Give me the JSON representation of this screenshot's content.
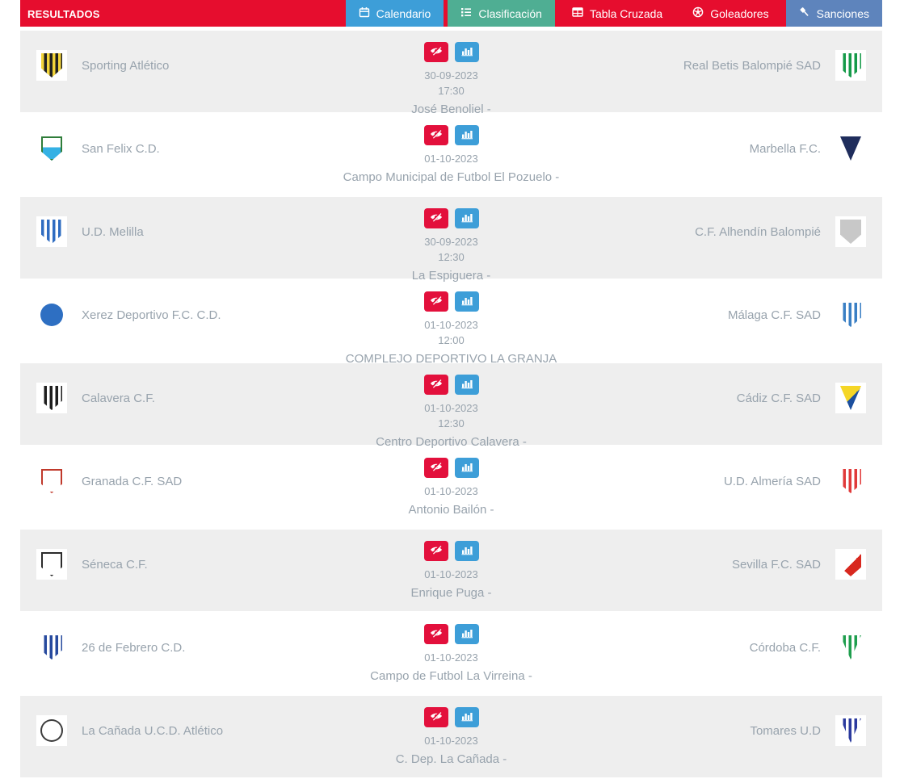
{
  "header": {
    "title": "RESULTADOS"
  },
  "tabs": [
    {
      "label": "Calendario",
      "icon": "calendar-icon",
      "color": "#3d9ed8"
    },
    {
      "label": "Clasificación",
      "icon": "ordered-list-icon",
      "color": "#4fae93"
    },
    {
      "label": "Tabla Cruzada",
      "icon": "table-icon",
      "color": "#e60d2e"
    },
    {
      "label": "Goleadores",
      "icon": "soccer-ball-icon",
      "color": "#e60d2e"
    },
    {
      "label": "Sanciones",
      "icon": "gavel-icon",
      "color": "#5e84bc"
    }
  ],
  "actions": {
    "hide_icon": "eye-slash-icon",
    "stats_icon": "bar-chart-icon"
  },
  "colors": {
    "primary_red": "#e60d2e",
    "tab_blue": "#3d9ed8",
    "tab_green": "#4fae93",
    "tab_steel": "#5e84bc",
    "button_red": "#e3103c",
    "button_blue": "#3d9ed8",
    "row_alt": "#eeeeee",
    "text_muted": "#98a3ad"
  },
  "matches": [
    {
      "home": {
        "name": "Sporting Atlético",
        "logo": {
          "shape": "shield",
          "pattern": "stripes",
          "colors": [
            "#f2d43a",
            "#222222"
          ]
        }
      },
      "away": {
        "name": "Real Betis Balompié SAD",
        "logo": {
          "shape": "shield",
          "pattern": "stripes",
          "colors": [
            "#ffffff",
            "#159a49"
          ]
        }
      },
      "date": "30-09-2023",
      "time": "17:30",
      "venue": "José Benoliel -"
    },
    {
      "home": {
        "name": "San Felix C.D.",
        "logo": {
          "shape": "shield",
          "pattern": "split-h",
          "colors": [
            "#ffffff",
            "#35b1e4"
          ],
          "border": "#2f7d3a"
        }
      },
      "away": {
        "name": "Marbella F.C.",
        "logo": {
          "shape": "pennant",
          "pattern": "solid",
          "colors": [
            "#1f2d5c"
          ]
        }
      },
      "date": "01-10-2023",
      "time": null,
      "venue": "Campo Municipal de Futbol El Pozuelo -"
    },
    {
      "home": {
        "name": "U.D. Melilla",
        "logo": {
          "shape": "shield",
          "pattern": "stripes",
          "colors": [
            "#2f6cc1",
            "#ffffff"
          ]
        }
      },
      "away": {
        "name": "C.F. Alhendín Balompié",
        "logo": {
          "shape": "shield",
          "pattern": "solid",
          "colors": [
            "#c8c8c8"
          ]
        }
      },
      "date": "30-09-2023",
      "time": "12:30",
      "venue": "La Espiguera -"
    },
    {
      "home": {
        "name": "Xerez Deportivo F.C. C.D.",
        "logo": {
          "shape": "circle",
          "pattern": "solid",
          "colors": [
            "#2e6fc2"
          ]
        }
      },
      "away": {
        "name": "Málaga C.F. SAD",
        "logo": {
          "shape": "shield",
          "pattern": "stripes",
          "colors": [
            "#ffffff",
            "#3a7fc4"
          ]
        }
      },
      "date": "01-10-2023",
      "time": "12:00",
      "venue": "COMPLEJO DEPORTIVO LA GRANJA"
    },
    {
      "home": {
        "name": "Calavera C.F.",
        "logo": {
          "shape": "shield",
          "pattern": "stripes",
          "colors": [
            "#ffffff",
            "#1d1d1d"
          ]
        }
      },
      "away": {
        "name": "Cádiz C.F. SAD",
        "logo": {
          "shape": "pennant",
          "pattern": "split",
          "colors": [
            "#f5d626",
            "#1c4f9e"
          ]
        }
      },
      "date": "01-10-2023",
      "time": "12:30",
      "venue": "Centro Deportivo Calavera -"
    },
    {
      "home": {
        "name": "Granada C.F. SAD",
        "logo": {
          "shape": "shield",
          "pattern": "solid",
          "colors": [
            "#ffffff"
          ],
          "border": "#c0392b"
        }
      },
      "away": {
        "name": "U.D. Almería SAD",
        "logo": {
          "shape": "shield",
          "pattern": "stripes",
          "colors": [
            "#ffffff",
            "#e03a3a"
          ]
        }
      },
      "date": "01-10-2023",
      "time": null,
      "venue": "Antonio Bailón -"
    },
    {
      "home": {
        "name": "Séneca C.F.",
        "logo": {
          "shape": "shield",
          "pattern": "solid",
          "colors": [
            "#ffffff"
          ],
          "border": "#2b2b2b"
        }
      },
      "away": {
        "name": "Sevilla F.C. SAD",
        "logo": {
          "shape": "shield",
          "pattern": "split",
          "colors": [
            "#ffffff",
            "#d8281f"
          ]
        }
      },
      "date": "01-10-2023",
      "time": null,
      "venue": "Enrique Puga -"
    },
    {
      "home": {
        "name": "26 de Febrero C.D.",
        "logo": {
          "shape": "shield",
          "pattern": "stripes",
          "colors": [
            "#ffffff",
            "#274a9e"
          ]
        }
      },
      "away": {
        "name": "Córdoba C.F.",
        "logo": {
          "shape": "pennant",
          "pattern": "stripes",
          "colors": [
            "#ffffff",
            "#1f9e4e"
          ]
        }
      },
      "date": "01-10-2023",
      "time": null,
      "venue": "Campo de Futbol La Virreina -"
    },
    {
      "home": {
        "name": "La Cañada U.C.D. Atlético",
        "logo": {
          "shape": "circle",
          "pattern": "solid",
          "colors": [
            "#ffffff"
          ],
          "border": "#3c3c3c"
        }
      },
      "away": {
        "name": "Tomares U.D",
        "logo": {
          "shape": "pennant",
          "pattern": "stripes",
          "colors": [
            "#ffffff",
            "#2b3a9e"
          ]
        }
      },
      "date": "01-10-2023",
      "time": null,
      "venue": "C. Dep. La Cañada -"
    }
  ]
}
